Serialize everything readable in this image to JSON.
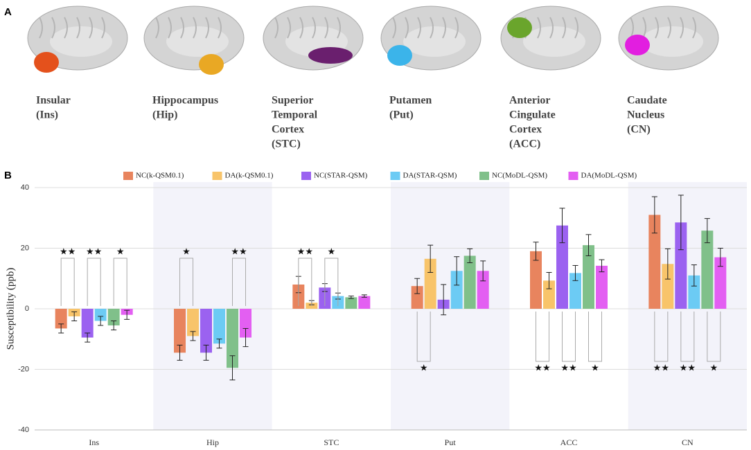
{
  "panel_labels": [
    "A",
    "B"
  ],
  "regions": [
    {
      "lines": [
        "Insular",
        "(Ins)"
      ],
      "color": "#e4511c"
    },
    {
      "lines": [
        "Hippocampus",
        "(Hip)"
      ],
      "color": "#e9a824"
    },
    {
      "lines": [
        "Superior",
        "Temporal",
        "Cortex",
        "(STC)"
      ],
      "color": "#6a1f6e"
    },
    {
      "lines": [
        "Putamen",
        "(Put)"
      ],
      "color": "#3bb4ea"
    },
    {
      "lines": [
        "Anterior",
        "Cingulate",
        "Cortex",
        "(ACC)"
      ],
      "color": "#6aa52c"
    },
    {
      "lines": [
        "Caudate",
        "Nucleus",
        "(CN)"
      ],
      "color": "#e21ee0"
    }
  ],
  "chart_data": {
    "type": "bar",
    "y_label": "Susceptibility (ppb)",
    "categories": [
      "Ins",
      "Hip",
      "STC",
      "Put",
      "ACC",
      "CN"
    ],
    "ylim": [
      -40,
      40
    ],
    "yticks": [
      -40,
      -20,
      0,
      20,
      40
    ],
    "grid": true,
    "legend": "top",
    "series": [
      {
        "name": "NC(k-QSM0.1)",
        "color": "#e8845e",
        "values": [
          -6.5,
          -14.5,
          8,
          7.5,
          19,
          31
        ],
        "errors": [
          1.5,
          2.5,
          2.7,
          2.5,
          3,
          6
        ]
      },
      {
        "name": "DA(k-QSM0.1)",
        "color": "#f8c46a",
        "values": [
          -2.5,
          -9,
          2,
          16.5,
          9.3,
          14.8
        ],
        "errors": [
          1.5,
          1.5,
          0.7,
          4.5,
          2.7,
          5
        ]
      },
      {
        "name": "NC(STAR-QSM)",
        "color": "#9b62f0",
        "values": [
          -9.5,
          -14.5,
          7,
          3,
          27.5,
          28.5
        ],
        "errors": [
          1.5,
          2.5,
          1.3,
          5,
          5.7,
          9
        ]
      },
      {
        "name": "DA(STAR-QSM)",
        "color": "#6ccbf4",
        "values": [
          -4,
          -11.5,
          4.2,
          12.5,
          11.8,
          11
        ],
        "errors": [
          1.5,
          1.5,
          1,
          4.7,
          2.5,
          3.5
        ]
      },
      {
        "name": "NC(MoDL-QSM)",
        "color": "#80c08a",
        "values": [
          -5.5,
          -19.5,
          3.8,
          17.5,
          21,
          25.8
        ],
        "errors": [
          1.5,
          4,
          0.4,
          2.3,
          3.5,
          4
        ]
      },
      {
        "name": "DA(MoDL-QSM)",
        "color": "#e35ff2",
        "values": [
          -2,
          -9.5,
          4.2,
          12.5,
          14.2,
          17
        ],
        "errors": [
          1.5,
          3,
          0.4,
          3.3,
          2,
          3
        ]
      }
    ],
    "annotations": [
      {
        "category": "Ins",
        "series": [
          "NC(k-QSM0.1)",
          "DA(k-QSM0.1)"
        ],
        "label": "★★",
        "position": "top"
      },
      {
        "category": "Ins",
        "series": [
          "NC(STAR-QSM)",
          "DA(STAR-QSM)"
        ],
        "label": "★★",
        "position": "top"
      },
      {
        "category": "Ins",
        "series": [
          "NC(MoDL-QSM)",
          "DA(MoDL-QSM)"
        ],
        "label": "★",
        "position": "top"
      },
      {
        "category": "Hip",
        "series": [
          "NC(k-QSM0.1)",
          "DA(k-QSM0.1)"
        ],
        "label": "★",
        "position": "top"
      },
      {
        "category": "Hip",
        "series": [
          "NC(MoDL-QSM)",
          "DA(MoDL-QSM)"
        ],
        "label": "★★",
        "position": "top"
      },
      {
        "category": "STC",
        "series": [
          "NC(k-QSM0.1)",
          "DA(k-QSM0.1)"
        ],
        "label": "★★",
        "position": "top"
      },
      {
        "category": "STC",
        "series": [
          "NC(STAR-QSM)",
          "DA(STAR-QSM)"
        ],
        "label": "★",
        "position": "top"
      },
      {
        "category": "Put",
        "series": [
          "NC(k-QSM0.1)",
          "DA(k-QSM0.1)"
        ],
        "label": "★",
        "position": "bottom"
      },
      {
        "category": "ACC",
        "series": [
          "NC(k-QSM0.1)",
          "DA(k-QSM0.1)"
        ],
        "label": "★★",
        "position": "bottom"
      },
      {
        "category": "ACC",
        "series": [
          "NC(STAR-QSM)",
          "DA(STAR-QSM)"
        ],
        "label": "★★",
        "position": "bottom"
      },
      {
        "category": "ACC",
        "series": [
          "NC(MoDL-QSM)",
          "DA(MoDL-QSM)"
        ],
        "label": "★",
        "position": "bottom"
      },
      {
        "category": "CN",
        "series": [
          "NC(k-QSM0.1)",
          "DA(k-QSM0.1)"
        ],
        "label": "★★",
        "position": "bottom"
      },
      {
        "category": "CN",
        "series": [
          "NC(STAR-QSM)",
          "DA(STAR-QSM)"
        ],
        "label": "★★",
        "position": "bottom"
      },
      {
        "category": "CN",
        "series": [
          "NC(MoDL-QSM)",
          "DA(MoDL-QSM)"
        ],
        "label": "★",
        "position": "bottom"
      }
    ]
  }
}
